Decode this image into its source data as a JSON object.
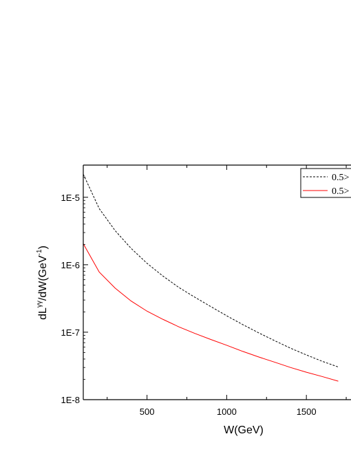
{
  "chart_data": {
    "type": "line",
    "xlabel": "W(GeV)",
    "ylabel": {
      "prefix": "dL",
      "superscript": "γγ",
      "middle": "/dW(GeV",
      "unit_superscript": "-1",
      "suffix": ")"
    },
    "xlim": [
      100,
      1780
    ],
    "ylim": [
      1e-08,
      3e-05
    ],
    "yscale": "log",
    "x_ticks": [
      500,
      1000,
      1500
    ],
    "x_tick_labels": [
      "500",
      "1000",
      "1500"
    ],
    "y_ticks": [
      1e-08,
      1e-07,
      1e-06,
      1e-05
    ],
    "y_tick_labels": [
      "1E-8",
      "1E-7",
      "1E-6",
      "1E-5"
    ],
    "grid": false,
    "legend_position": "top-right",
    "series": [
      {
        "name": "0.5>",
        "color": "#000000",
        "dash": "dashed",
        "x": [
          100,
          200,
          300,
          400,
          500,
          600,
          700,
          800,
          900,
          1000,
          1100,
          1200,
          1300,
          1400,
          1500,
          1600,
          1700
        ],
        "y": [
          2.2e-05,
          6.8e-06,
          3.2e-06,
          1.75e-06,
          1.05e-06,
          6.8e-07,
          4.6e-07,
          3.3e-07,
          2.4e-07,
          1.75e-07,
          1.3e-07,
          9.8e-08,
          7.5e-08,
          5.8e-08,
          4.6e-08,
          3.7e-08,
          3.05e-08
        ]
      },
      {
        "name": "0.5>",
        "color": "#ff0000",
        "dash": "solid",
        "x": [
          100,
          200,
          300,
          400,
          500,
          600,
          700,
          800,
          900,
          1000,
          1100,
          1200,
          1300,
          1400,
          1500,
          1600,
          1700
        ],
        "y": [
          2.05e-06,
          7.8e-07,
          4.5e-07,
          2.9e-07,
          2.05e-07,
          1.55e-07,
          1.2e-07,
          9.6e-08,
          7.8e-08,
          6.4e-08,
          5.2e-08,
          4.3e-08,
          3.6e-08,
          3e-08,
          2.55e-08,
          2.2e-08,
          1.88e-08
        ]
      }
    ]
  }
}
